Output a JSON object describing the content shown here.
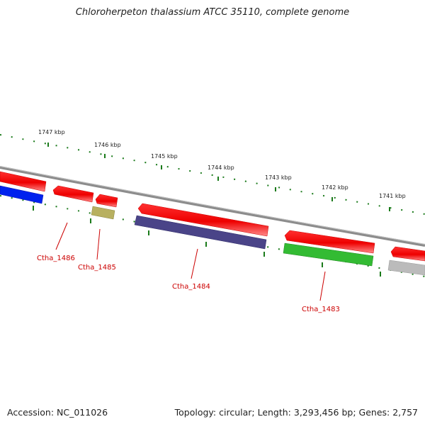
{
  "title": "Chloroherpeton thalassium ATCC 35110, complete genome",
  "footer": {
    "accession": "Accession: NC_011026",
    "summary": "Topology: circular; Length: 3,293,456 bp; Genes: 2,757"
  },
  "colors": {
    "backbone": "#8a8a8a",
    "tick": "#1a7a1a",
    "gene_label": "#cc0000",
    "forward_gene": "#ee0000"
  },
  "ruler_ticks": [
    {
      "label": "1747 kbp"
    },
    {
      "label": "1746 kbp"
    },
    {
      "label": "1745 kbp"
    },
    {
      "label": "1744 kbp"
    },
    {
      "label": "1743 kbp"
    },
    {
      "label": "1742 kbp"
    },
    {
      "label": "1741 kbp"
    }
  ],
  "genes": [
    {
      "label": "Ctha_1486",
      "color": "#0022ee"
    },
    {
      "label": "Ctha_1485",
      "color": "#b8b060"
    },
    {
      "label": "Ctha_1484",
      "color": "#4a4488"
    },
    {
      "label": "Ctha_1483",
      "color": "#33bb33"
    }
  ],
  "unlabeled_features": [
    {
      "color": "#bbbbbb"
    }
  ]
}
